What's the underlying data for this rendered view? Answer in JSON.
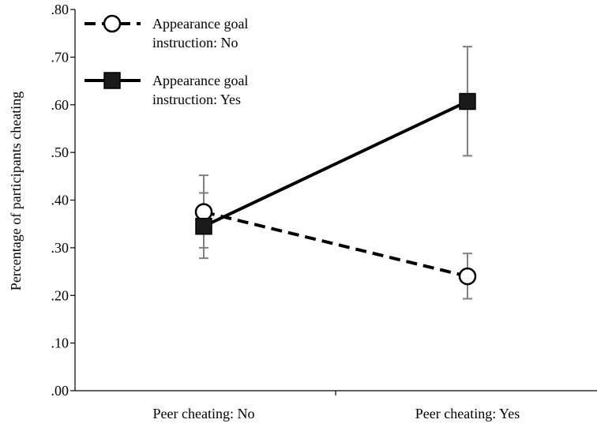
{
  "chart_data": {
    "type": "line",
    "title": "",
    "xlabel": "",
    "ylabel": "Percentage of participants cheating",
    "categories": [
      "Peer cheating: No",
      "Peer cheating: Yes"
    ],
    "y_ticks": [
      ".00",
      ".10",
      ".20",
      ".30",
      ".40",
      ".50",
      ".60",
      ".70",
      ".80"
    ],
    "ylim": [
      0,
      0.8
    ],
    "grid": false,
    "legend_position": "top-left",
    "series": [
      {
        "name_lines": [
          "Appearance goal",
          "instruction: No"
        ],
        "values": [
          0.375,
          0.24
        ],
        "error_low": [
          0.3,
          0.193
        ],
        "error_high": [
          0.415,
          0.288
        ],
        "line_style": "dashed",
        "marker": "circle-open",
        "color": "#000000"
      },
      {
        "name_lines": [
          "Appearance goal",
          "instruction: Yes"
        ],
        "values": [
          0.345,
          0.607
        ],
        "error_low": [
          0.278,
          0.493
        ],
        "error_high": [
          0.452,
          0.722
        ],
        "line_style": "solid",
        "marker": "square-filled",
        "color": "#000000"
      }
    ],
    "error_bar_color": "#808080"
  }
}
